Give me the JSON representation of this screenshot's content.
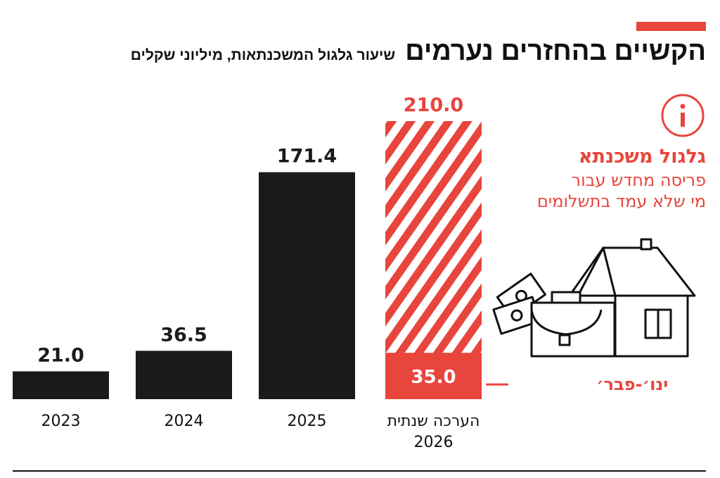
{
  "header": {
    "title": "הקשיים בהחזרים נערמים",
    "subtitle": "שיעור גלגול המשכנתאות, מיליוני שקלים"
  },
  "info_box": {
    "icon": "info-icon",
    "heading": "גלגול משכנתא",
    "line1": "פריסה מחדש עבור",
    "line2": "מי שלא עמד בתשלומים",
    "illustration": "house-briefcase-money-icon"
  },
  "colors": {
    "accent": "#e8453c",
    "bar": "#1a1a1a",
    "text": "#111111"
  },
  "chart_data": {
    "type": "bar",
    "categories": [
      "2023",
      "2024",
      "2025",
      "הערכה שנתית 2026"
    ],
    "values": [
      21.0,
      36.5,
      171.4,
      210.0
    ],
    "value_labels": [
      "21.0",
      "36.5",
      "171.4",
      "210.0"
    ],
    "category_labels": [
      [
        "2023"
      ],
      [
        "2024"
      ],
      [
        "2025"
      ],
      [
        "הערכה שנתית",
        "2026"
      ]
    ],
    "estimate_index": 3,
    "estimate_partial": {
      "value": 35.0,
      "label": "35.0",
      "annotation": "ינו׳-פבר׳"
    },
    "ylim": [
      0,
      210
    ],
    "grid": false,
    "xlabel": "",
    "ylabel": ""
  }
}
